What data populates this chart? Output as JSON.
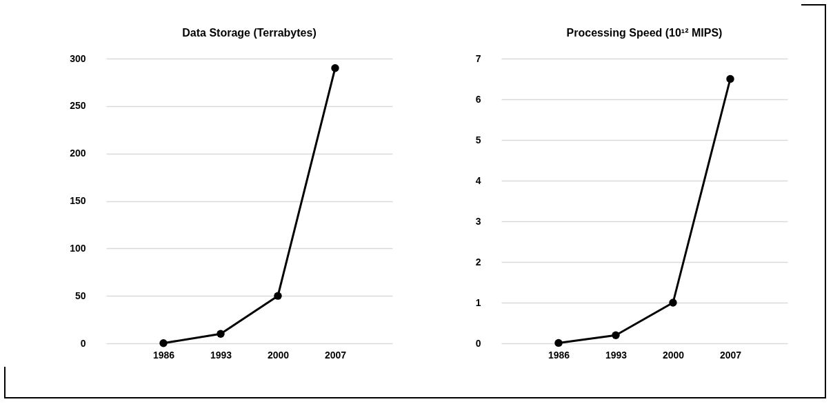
{
  "chart_data": [
    {
      "type": "line",
      "title": "Data Storage (Terrabytes)",
      "categories": [
        "1986",
        "1993",
        "2000",
        "2007"
      ],
      "values": [
        0.2,
        10,
        50,
        290
      ],
      "color": "#000000",
      "ylim": [
        0,
        300
      ],
      "yticks": [
        0,
        50,
        100,
        150,
        200,
        250,
        300
      ],
      "grid": "y",
      "marker": "circle",
      "line_style": "solid"
    },
    {
      "type": "line",
      "title": "Processing Speed (10¹² MIPS)",
      "categories": [
        "1986",
        "1993",
        "2000",
        "2007"
      ],
      "values": [
        0.01,
        0.2,
        1,
        6.5
      ],
      "color": "#000000",
      "ylim": [
        0,
        7
      ],
      "yticks": [
        0,
        1,
        2,
        3,
        4,
        5,
        6,
        7
      ],
      "grid": "y",
      "marker": "circle",
      "line_style": "solid"
    }
  ]
}
